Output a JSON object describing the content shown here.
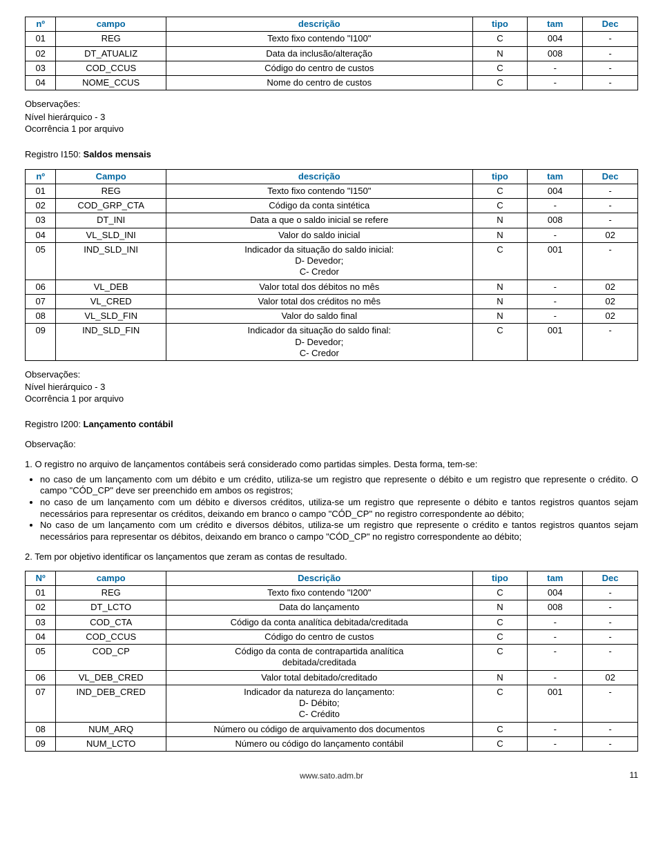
{
  "table1": {
    "headers": [
      "nº",
      "campo",
      "descrição",
      "tipo",
      "tam",
      "Dec"
    ],
    "rows": [
      [
        "01",
        "REG",
        "Texto fixo contendo \"I100\"",
        "C",
        "004",
        "-"
      ],
      [
        "02",
        "DT_ATUALIZ",
        "Data da inclusão/alteração",
        "N",
        "008",
        "-"
      ],
      [
        "03",
        "COD_CCUS",
        "Código do centro de custos",
        "C",
        "-",
        "-"
      ],
      [
        "04",
        "NOME_CCUS",
        "Nome do centro de custos",
        "C",
        "-",
        "-"
      ]
    ]
  },
  "obs1": {
    "title": "Observações:",
    "l1": "Nível hierárquico - 3",
    "l2": "Ocorrência 1 por arquivo"
  },
  "reg150": {
    "prefix": "Registro I150: ",
    "title": "Saldos mensais"
  },
  "table2": {
    "headers": [
      "nº",
      "Campo",
      "descrição",
      "tipo",
      "tam",
      "Dec"
    ],
    "rows": [
      [
        "01",
        "REG",
        "Texto fixo contendo \"I150\"",
        "C",
        "004",
        "-"
      ],
      [
        "02",
        "COD_GRP_CTA",
        "Código da conta sintética",
        "C",
        "-",
        "-"
      ],
      [
        "03",
        "DT_INI",
        "Data a que o saldo inicial se refere",
        "N",
        "008",
        "-"
      ],
      [
        "04",
        "VL_SLD_INI",
        "Valor do saldo inicial",
        "N",
        "-",
        "02"
      ],
      [
        "05",
        "IND_SLD_INI",
        "Indicador da situação do saldo inicial:\nD- Devedor;\nC- Credor",
        "C",
        "001",
        "-"
      ],
      [
        "06",
        "VL_DEB",
        "Valor total dos débitos no mês",
        "N",
        "-",
        "02"
      ],
      [
        "07",
        "VL_CRED",
        "Valor total dos créditos no mês",
        "N",
        "-",
        "02"
      ],
      [
        "08",
        "VL_SLD_FIN",
        "Valor do saldo final",
        "N",
        "-",
        "02"
      ],
      [
        "09",
        "IND_SLD_FIN",
        "Indicador da situação do saldo final:\nD- Devedor;\nC- Credor",
        "C",
        "001",
        "-"
      ]
    ]
  },
  "obs2": {
    "title": "Observações:",
    "l1": "Nível hierárquico - 3",
    "l2": "Ocorrência 1 por arquivo"
  },
  "reg200": {
    "prefix": "Registro I200:  ",
    "title": "Lançamento contábil"
  },
  "observacao": "Observação:",
  "p1": "1. O registro no arquivo de lançamentos contábeis será considerado como partidas simples. Desta forma, tem-se:",
  "bullets": [
    "no caso de um lançamento com um débito e um crédito, utiliza-se um registro que represente o débito e um registro que represente o crédito. O campo \"CÓD_CP\" deve ser preenchido em ambos os registros;",
    "no caso de um lançamento com um débito e diversos créditos, utiliza-se um registro que represente o débito e tantos registros quantos sejam necessários para representar os créditos, deixando em branco o campo \"CÓD_CP\" no registro correspondente ao débito;",
    "No caso de um lançamento com um crédito e diversos débitos, utiliza-se um registro que represente o crédito e tantos registros quantos sejam necessários para representar os débitos, deixando em branco o campo \"CÓD_CP\" no registro correspondente ao débito;"
  ],
  "p2": "2. Tem por objetivo identificar os lançamentos que zeram as contas de resultado.",
  "table3": {
    "headers": [
      "Nº",
      "campo",
      "Descrição",
      "tipo",
      "tam",
      "Dec"
    ],
    "rows": [
      [
        "01",
        "REG",
        "Texto fixo contendo \"I200\"",
        "C",
        "004",
        "-"
      ],
      [
        "02",
        "DT_LCTO",
        "Data do lançamento",
        "N",
        "008",
        "-"
      ],
      [
        "03",
        "COD_CTA",
        "Código da conta analítica debitada/creditada",
        "C",
        "-",
        "-"
      ],
      [
        "04",
        "COD_CCUS",
        "Código do centro de custos",
        "C",
        "-",
        "-"
      ],
      [
        "05",
        "COD_CP",
        "Código da conta de contrapartida analítica\ndebitada/creditada",
        "C",
        "-",
        "-"
      ],
      [
        "06",
        "VL_DEB_CRED",
        "Valor total debitado/creditado",
        "N",
        "-",
        "02"
      ],
      [
        "07",
        "IND_DEB_CRED",
        "Indicador da natureza do lançamento:\nD- Débito;\nC- Crédito",
        "C",
        "001",
        "-"
      ],
      [
        "08",
        "NUM_ARQ",
        "Número ou código de arquivamento dos documentos",
        "C",
        "-",
        "-"
      ],
      [
        "09",
        "NUM_LCTO",
        "Número ou código do lançamento contábil",
        "C",
        "-",
        "-"
      ]
    ]
  },
  "footer": {
    "url": "www.sato.adm.br",
    "page": "11"
  },
  "style": {
    "header_color": "#0066a0",
    "border_color": "#000000",
    "text_color": "#000000",
    "background": "#ffffff",
    "font_size_body": 13,
    "font_size_footer": 12
  }
}
